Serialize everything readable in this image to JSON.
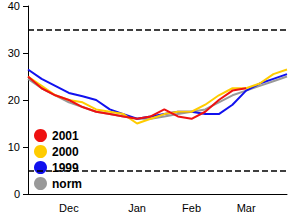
{
  "chart_data": {
    "type": "line",
    "categories": [
      null,
      null,
      null,
      "Dec",
      null,
      null,
      null,
      null,
      "Jan",
      null,
      null,
      null,
      "Feb",
      null,
      null,
      null,
      "Mar",
      null,
      null,
      null
    ],
    "series": [
      {
        "name": "2001",
        "color": "#ee1111",
        "values": [
          25,
          22.5,
          21,
          20,
          18.5,
          17.5,
          17,
          16.5,
          16,
          16.5,
          18,
          16.5,
          16,
          17.5,
          20,
          22,
          22.5,
          null,
          null,
          null
        ]
      },
      {
        "name": "2000",
        "color": "#ffcc00",
        "values": [
          25,
          23,
          21,
          20,
          19.5,
          18,
          17.5,
          17,
          15,
          16,
          17,
          17.5,
          17.5,
          19,
          21,
          22.5,
          22.5,
          23.5,
          25.5,
          26.5
        ]
      },
      {
        "name": "1999",
        "color": "#1111ee",
        "values": [
          26.5,
          24.5,
          23,
          21.5,
          20.8,
          20,
          18,
          17,
          16,
          16.5,
          17,
          17.5,
          17.5,
          17,
          17,
          19,
          22,
          23.5,
          24.5,
          25.5
        ]
      },
      {
        "name": "norm",
        "color": "#999999",
        "values": [
          24.5,
          22.5,
          21,
          19.5,
          18.5,
          17.5,
          17,
          16.5,
          16,
          16,
          16.5,
          17,
          17.5,
          18,
          19.5,
          21,
          22,
          23,
          24,
          25
        ]
      }
    ],
    "ylim": [
      0,
      40
    ],
    "yticks": [
      0,
      10,
      20,
      30,
      40
    ],
    "reference_lines": [
      35,
      5
    ],
    "grid": false,
    "legend": "lower left"
  }
}
